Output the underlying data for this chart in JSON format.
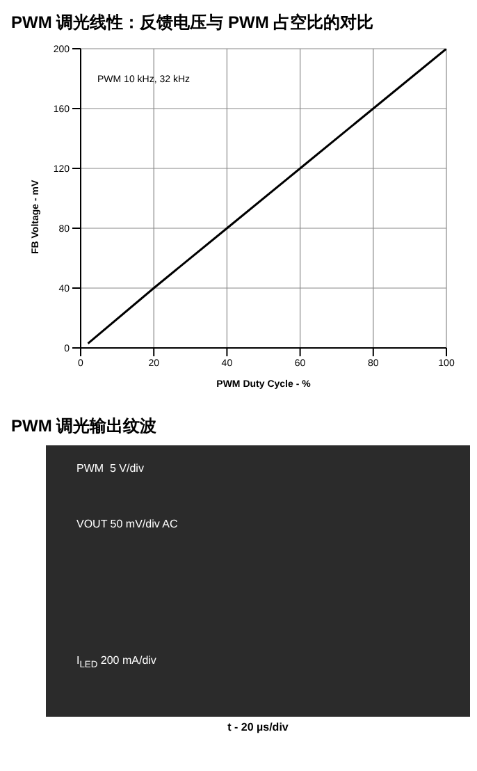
{
  "chart_data": [
    {
      "type": "line",
      "title": "PWM 调光线性：反馈电压与 PWM 占空比的对比",
      "xlabel": "PWM Duty Cycle - %",
      "ylabel": "FB Voltage - mV",
      "annotations": [
        "PWM 10 kHz, 32 kHz"
      ],
      "series": [
        {
          "color": "#000000",
          "x": [
            2,
            20,
            40,
            60,
            80,
            100
          ],
          "values": [
            3,
            40,
            80,
            120,
            160,
            200
          ]
        }
      ],
      "xlim": [
        0,
        100
      ],
      "xticks": [
        0,
        20,
        40,
        60,
        80,
        100
      ],
      "ylim": [
        0,
        200
      ],
      "yticks": [
        0,
        40,
        80,
        120,
        160,
        200
      ],
      "grid": true,
      "marker": "none",
      "line_style": "solid"
    },
    {
      "type": "other",
      "title": "PWM 调光输出纹波",
      "annotations": [
        "PWM  5 V/div",
        "VOUT 50 mV/div AC",
        "I$_{LED}$ 200 mA/div",
        "t - 20 µs/div"
      ]
    }
  ]
}
